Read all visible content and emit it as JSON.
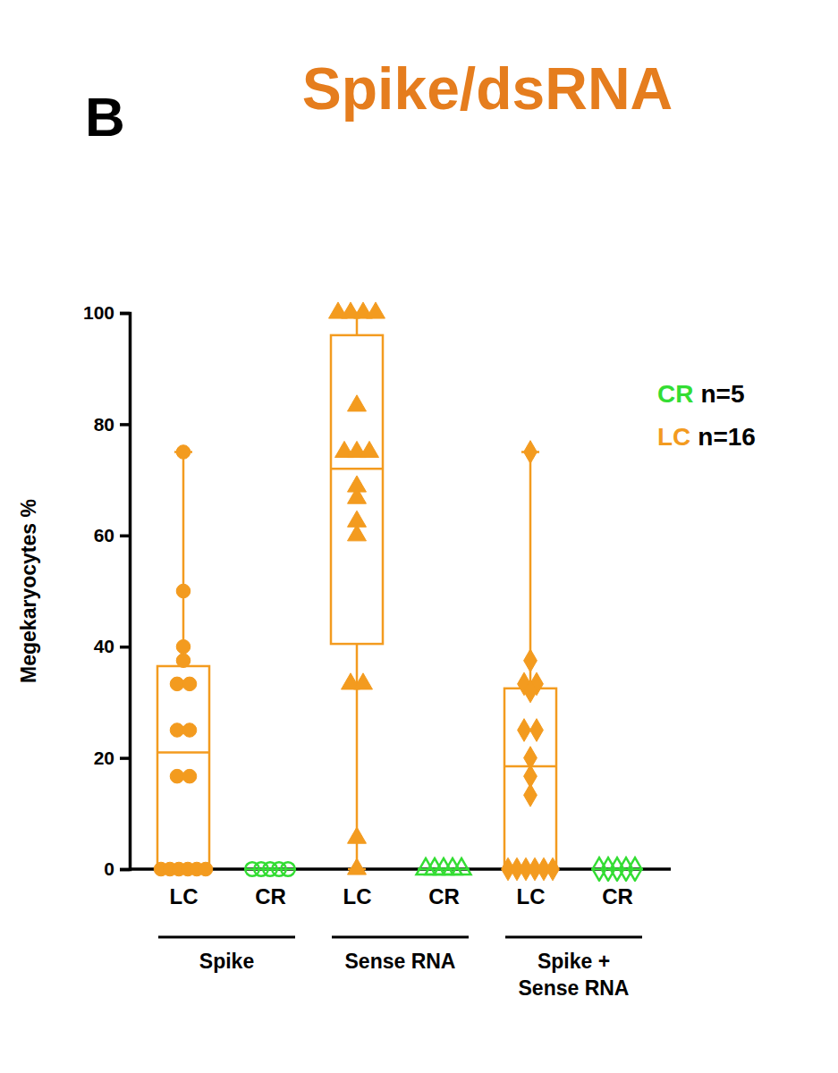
{
  "chart_data": {
    "type": "box",
    "title": "Spike/dsRNA",
    "annotations": [
      {
        "text": "B"
      }
    ],
    "y_label": "Megekaryocytes %",
    "ylim": [
      0,
      100
    ],
    "yticks": [
      0,
      20,
      40,
      60,
      80,
      100
    ],
    "grid": false,
    "legend": "right",
    "categories": [
      "LC",
      "CR",
      "LC",
      "CR",
      "LC",
      "CR"
    ],
    "groups": [
      {
        "label": [
          "Spike"
        ],
        "marker": "circle"
      },
      {
        "label": [
          "Sense RNA"
        ],
        "marker": "triangle"
      },
      {
        "label": [
          "Spike +",
          "Sense RNA"
        ],
        "marker": "diamond"
      }
    ],
    "series": [
      {
        "name": "LC",
        "legend_label": "n=16",
        "color": "#f39b1f",
        "marker": "filled",
        "points": [
          [
            75,
            50,
            40,
            37.5,
            33.3,
            33.3,
            25,
            25,
            16.7,
            16.7,
            0,
            0,
            0,
            0,
            0,
            0
          ],
          [
            100,
            100,
            100,
            100,
            83.3,
            75,
            75,
            75,
            68.8,
            66.7,
            62.5,
            60,
            33.3,
            33.3,
            5.6,
            0
          ],
          [
            75,
            37.5,
            33.3,
            33.3,
            32,
            25,
            25,
            20,
            16.7,
            13.3,
            0,
            0,
            0,
            0,
            0,
            0
          ]
        ],
        "boxes": [
          {
            "min": 0,
            "q1": 0,
            "median": 21,
            "q3": 36.5,
            "max": 75
          },
          {
            "min": 0,
            "q1": 40.5,
            "median": 72,
            "q3": 96,
            "max": 100
          },
          {
            "min": 0,
            "q1": 0,
            "median": 18.5,
            "q3": 32.5,
            "max": 75
          }
        ]
      },
      {
        "name": "CR",
        "legend_label": "n=5",
        "color": "#33dd33",
        "marker": "open",
        "points": [
          [
            0,
            0,
            0,
            0,
            0
          ],
          [
            0,
            0,
            0,
            0,
            0
          ],
          [
            0,
            0,
            0,
            0,
            0
          ]
        ],
        "boxes": [
          {
            "min": 0,
            "q1": 0,
            "median": 0,
            "q3": 0,
            "max": 0
          },
          {
            "min": 0,
            "q1": 0,
            "median": 0,
            "q3": 0,
            "max": 0
          },
          {
            "min": 0,
            "q1": 0,
            "median": 0,
            "q3": 0,
            "max": 0
          }
        ]
      }
    ]
  }
}
